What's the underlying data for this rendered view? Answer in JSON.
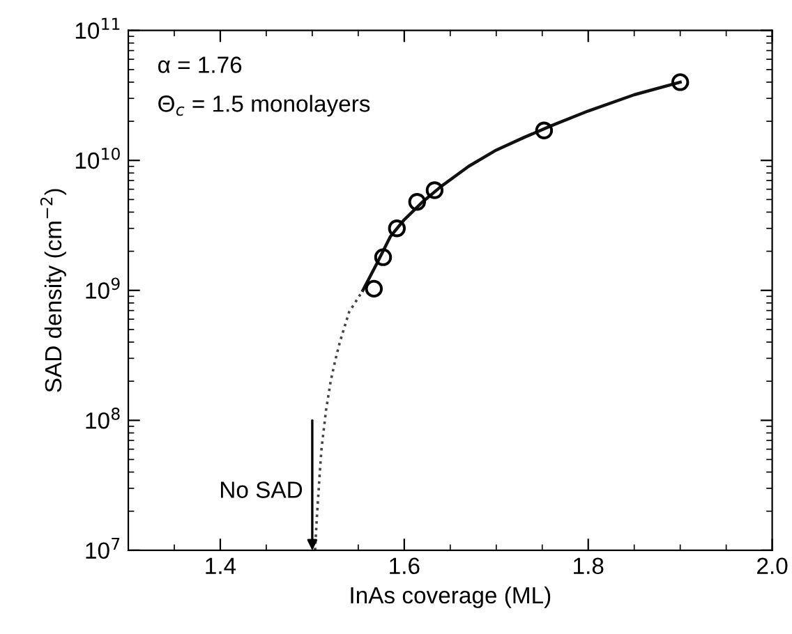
{
  "chart_data": {
    "type": "scatter",
    "xlabel": "InAs coverage (ML)",
    "ylabel": "SAD density (cm$^{−2}$)",
    "log": "y",
    "xlim": [
      1.3,
      2.0
    ],
    "xticks": [
      1.4,
      1.6,
      1.8,
      {
        "value": 2.0,
        "label": "2.0"
      }
    ],
    "ylim": [
      10000000.0,
      100000000000.0
    ],
    "yticks": [
      {
        "value": 10000000.0,
        "label": "10$^{7}$"
      },
      {
        "value": 100000000.0,
        "label": "10$^{8}$"
      },
      {
        "value": 1000000000.0,
        "label": "10$^{9}$"
      },
      {
        "value": 10000000000.0,
        "label": "10$^{10}$"
      },
      {
        "value": 100000000000.0,
        "label": "10$^{11}$"
      }
    ],
    "grid": false,
    "legend": false,
    "series": [
      {
        "color": "#000000",
        "marker": "circle",
        "x": [
          1.567,
          1.577,
          1.592,
          1.614,
          1.633,
          1.752,
          1.9
        ],
        "values": [
          1030000000.0,
          1800000000.0,
          3000000000.0,
          4800000000.0,
          5900000000.0,
          17000000000.0,
          40000000000.0
        ]
      },
      {
        "type": "line",
        "color": "#111111",
        "line_style": "solid",
        "marker": "none",
        "x": [
          1.555,
          1.57,
          1.585,
          1.6,
          1.62,
          1.64,
          1.67,
          1.7,
          1.73,
          1.76,
          1.8,
          1.85,
          1.9
        ],
        "values": [
          1000000000.0,
          1600000000.0,
          2600000000.0,
          3500000000.0,
          4800000000.0,
          6300000000.0,
          9000000000.0,
          12000000000.0,
          15000000000.0,
          18500000000.0,
          24000000000.0,
          32000000000.0,
          40000000000.0
        ]
      },
      {
        "type": "line",
        "color": "#444444",
        "line_style": "dotted",
        "marker": "none",
        "x": [
          1.503,
          1.505,
          1.508,
          1.51,
          1.515,
          1.52,
          1.525,
          1.53,
          1.54,
          1.555
        ],
        "values": [
          10000000.0,
          18000000.0,
          38000000.0,
          60000000.0,
          120000000.0,
          200000000.0,
          290000000.0,
          400000000.0,
          680000000.0,
          1000000000.0
        ]
      }
    ],
    "annotations": [
      {
        "text": "α = 1.76"
      },
      {
        "text": "Θ$_{c}$ = 1.5 monolayers"
      },
      {
        "text": "No SAD",
        "x": 1.5,
        "y": 10000000.0
      }
    ]
  }
}
